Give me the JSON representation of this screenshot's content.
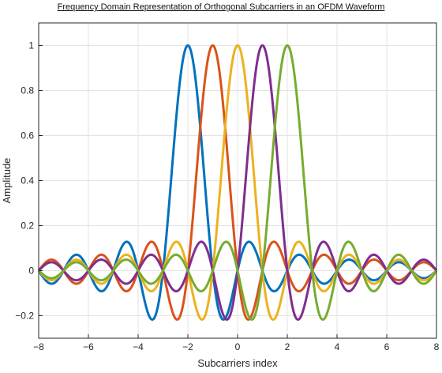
{
  "chart_data": {
    "type": "line",
    "title": "Frequency Domain Representation of Orthogonal Subcarriers in an OFDM Waveform",
    "xlabel": "Subcarriers index",
    "ylabel": "Amplitude",
    "xlim": [
      -8,
      8
    ],
    "ylim": [
      -0.3,
      1.1
    ],
    "xticks": [
      -8,
      -6,
      -4,
      -2,
      0,
      2,
      4,
      6,
      8
    ],
    "yticks": [
      -0.2,
      0,
      0.2,
      0.4,
      0.6,
      0.8,
      1
    ],
    "ytick_labels": [
      "−0.2",
      "0",
      "0.2",
      "0.4",
      "0.6",
      "0.8",
      "1"
    ],
    "xtick_labels": [
      "−8",
      "−6",
      "−4",
      "−2",
      "0",
      "2",
      "4",
      "6",
      "8"
    ],
    "grid": true,
    "function": "sinc(x - k)",
    "series": [
      {
        "center": -2,
        "color": "#0072BD"
      },
      {
        "center": -1,
        "color": "#D95319"
      },
      {
        "center": 0,
        "color": "#EDB120"
      },
      {
        "center": 1,
        "color": "#7E2F8E"
      },
      {
        "center": 2,
        "color": "#77AC30"
      }
    ]
  }
}
